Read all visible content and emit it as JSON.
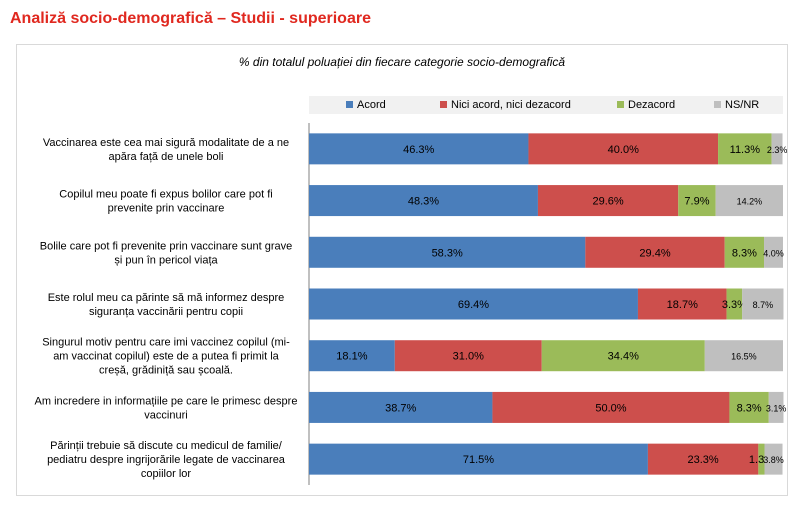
{
  "page_title": "Analiză socio-demografică – Studii - superioare",
  "chart_data": {
    "type": "bar",
    "orientation": "horizontal",
    "stacked": "percent",
    "subtitle": "% din totalul poluației din fiecare categorie socio-demografică",
    "legend_position": "top",
    "xlim": [
      0,
      100
    ],
    "categories": [
      "Vaccinarea este cea mai sigură modalitate de a ne apăra față de unele boli",
      "Copilul meu poate fi  expus  bolilor care pot fi prevenite prin vaccinare",
      "Bolile care pot fi prevenite prin vaccinare sunt grave și pun în pericol viața",
      "Este rolul meu ca părinte să mă informez despre siguranța vaccinării pentru copii",
      "Singurul motiv pentru care imi vaccinez copilul (mi-am vaccinat copilul) este  de a putea fi primit  la creșă, grădiniță sau școală.",
      "Am incredere in informațiile pe care le primesc despre vaccinuri",
      "Părinții trebuie să discute cu medicul de familie/ pediatru despre ingrijorările legate de vaccinarea copiilor lor"
    ],
    "category_lines": [
      [
        "Vaccinarea este cea mai sigură modalitate de a ne",
        "apăra față de unele boli"
      ],
      [
        "Copilul meu poate fi  expus  bolilor care pot fi",
        "prevenite prin vaccinare"
      ],
      [
        "Bolile care pot fi prevenite prin vaccinare sunt grave",
        "și pun în pericol viața"
      ],
      [
        "Este rolul meu ca părinte să mă informez despre",
        "siguranța vaccinării pentru copii"
      ],
      [
        "Singurul motiv pentru care imi vaccinez copilul (mi-",
        "am vaccinat copilul) este  de a putea fi primit  la",
        "creșă, grădiniță sau școală."
      ],
      [
        "Am incredere in informațiile pe care le primesc despre",
        "vaccinuri"
      ],
      [
        "Părinții trebuie să discute cu medicul de familie/",
        "pediatru despre ingrijorările legate de vaccinarea",
        "copiilor lor"
      ]
    ],
    "series": [
      {
        "name": "Acord",
        "color": "#4a7ebb",
        "values": [
          46.3,
          48.3,
          58.3,
          69.4,
          18.1,
          38.7,
          71.5
        ]
      },
      {
        "name": "Nici acord, nici dezacord",
        "color": "#cd4f4c",
        "values": [
          40.0,
          29.6,
          29.4,
          18.7,
          31.0,
          50.0,
          23.3
        ]
      },
      {
        "name": "Dezacord",
        "color": "#9bbb59",
        "values": [
          11.3,
          7.9,
          8.3,
          3.3,
          34.4,
          8.3,
          1.3
        ]
      },
      {
        "name": "NS/NR",
        "color": "#bfbfbf",
        "values": [
          2.3,
          14.2,
          4.0,
          8.7,
          16.5,
          3.1,
          3.8
        ]
      }
    ]
  }
}
